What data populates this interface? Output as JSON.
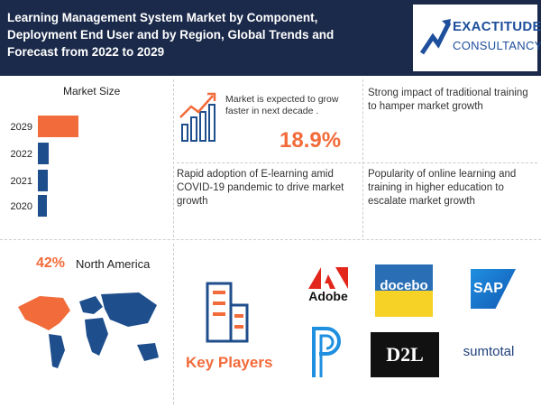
{
  "header": {
    "title": "Learning Management System Market by Component, Deployment End User and by Region, Global Trends and Forecast from 2022 to 2029",
    "logo": [
      "EXACTITUDE",
      "CONSULTANCY"
    ]
  },
  "chart_data": {
    "type": "bar",
    "title": "Market Size",
    "categories": [
      "2029",
      "2022",
      "2021",
      "2020"
    ],
    "values": [
      45,
      12,
      11,
      10
    ],
    "xlim": [
      0,
      50
    ],
    "colors": [
      "#f26b3a",
      "#1f4e8c",
      "#1f4e8c",
      "#1f4e8c"
    ]
  },
  "growth": {
    "text": "Market is expected to grow faster in next decade .",
    "value": "18.9%"
  },
  "drivers": [
    "Strong impact of traditional training to hamper market growth",
    "Rapid adoption of E-learning amid COVID-19 pandemic to drive market growth",
    "Popularity of online learning and training in higher education to escalate market growth"
  ],
  "region": {
    "share": "42%",
    "name": "North America"
  },
  "key_players": {
    "title": "Key Players",
    "logos": [
      "Adobe",
      "docebo",
      "SAP",
      "D2L",
      "sumtotal"
    ]
  }
}
